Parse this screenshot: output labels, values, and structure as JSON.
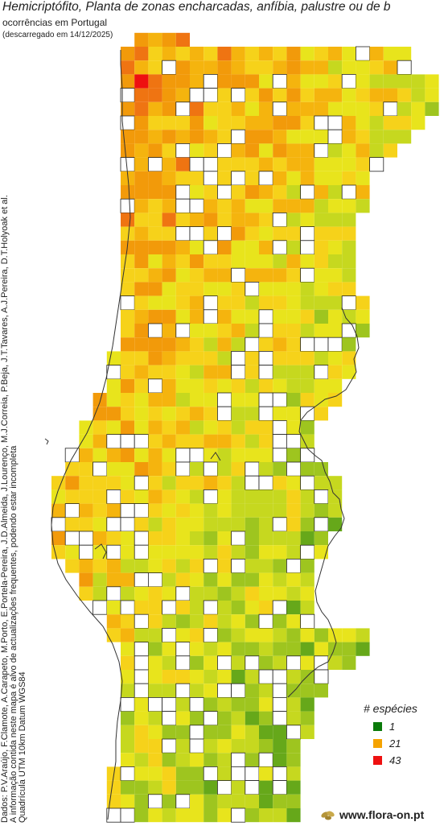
{
  "header": {
    "title": "Hemicriptófito, Planta de zonas encharcadas, anfíbia, palustre ou de b",
    "subtitle": "ocorrências em Portugal",
    "date": "(descarregado em 14/12/2025)"
  },
  "credits": {
    "line1": "Dados: P.V.Araújo, F.Clamote, A.Carapeto, M.Porto, E.Portela-Pereira, J.D.Almeida, J.Lourenço, M.J.Correia, P.Beja, J.T.Tavares, A.J.Pereira, D.T.Holyoak et al.",
    "line2": "A informação contida neste mapa é alvo de actualizações frequentes, podendo estar incompleta",
    "line3": "Quadrícula UTM 10km Datum WGS84"
  },
  "legend": {
    "title": "# espécies",
    "items": [
      {
        "label": "1",
        "color": "#0a7a0a"
      },
      {
        "label": "21",
        "color": "#f5a300"
      },
      {
        "label": "43",
        "color": "#ee1010"
      }
    ]
  },
  "brand": {
    "text": "www.flora-on.pt"
  },
  "colors": {
    "scale_low": "#0a7a0a",
    "scale_mid": "#f5a300",
    "scale_high": "#ee1010"
  }
}
